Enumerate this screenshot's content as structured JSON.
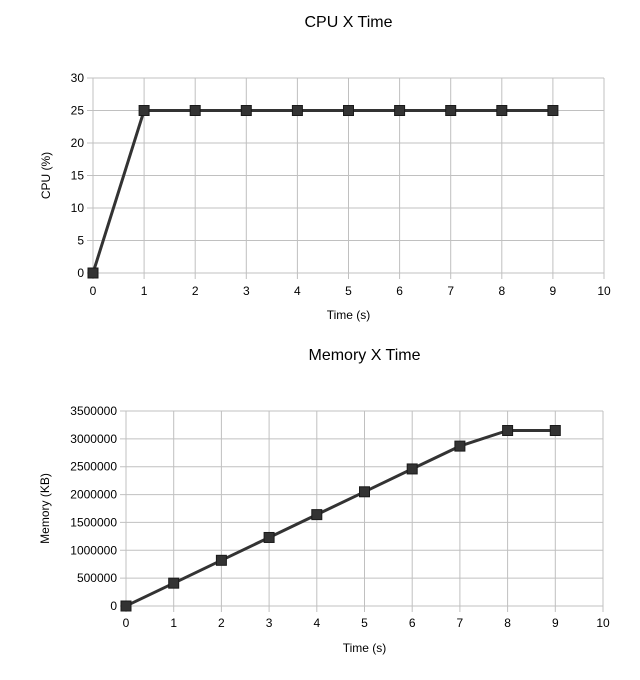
{
  "chart_data": [
    {
      "type": "line",
      "title": "CPU X Time",
      "xlabel": "Time (s)",
      "ylabel": "CPU (%)",
      "xlim": [
        0,
        10
      ],
      "ylim": [
        0,
        30
      ],
      "x_ticks": [
        0,
        1,
        2,
        3,
        4,
        5,
        6,
        7,
        8,
        9,
        10
      ],
      "y_ticks": [
        0,
        5,
        10,
        15,
        20,
        25,
        30
      ],
      "grid": true,
      "legend": "none",
      "series": [
        {
          "x": [
            0,
            1,
            2,
            3,
            4,
            5,
            6,
            7,
            8,
            9
          ],
          "y": [
            0,
            25,
            25,
            25,
            25,
            25,
            25,
            25,
            25,
            25
          ],
          "color": "#333333",
          "marker": "square"
        }
      ]
    },
    {
      "type": "line",
      "title": "Memory X Time",
      "xlabel": "Time (s)",
      "ylabel": "Memory (KB)",
      "xlim": [
        0,
        10
      ],
      "ylim": [
        0,
        3500000
      ],
      "x_ticks": [
        0,
        1,
        2,
        3,
        4,
        5,
        6,
        7,
        8,
        9,
        10
      ],
      "y_ticks": [
        0,
        500000,
        1000000,
        1500000,
        2000000,
        2500000,
        3000000,
        3500000
      ],
      "grid": true,
      "legend": "none",
      "series": [
        {
          "x": [
            0,
            1,
            2,
            3,
            4,
            5,
            6,
            7,
            8,
            9
          ],
          "y": [
            0,
            410000,
            820000,
            1230000,
            1640000,
            2050000,
            2460000,
            2870000,
            3150000,
            3150000
          ],
          "color": "#333333",
          "marker": "square"
        }
      ]
    }
  ],
  "colors": {
    "line": "#333333",
    "grid": "#c0c0c0",
    "background": "#ffffff"
  }
}
